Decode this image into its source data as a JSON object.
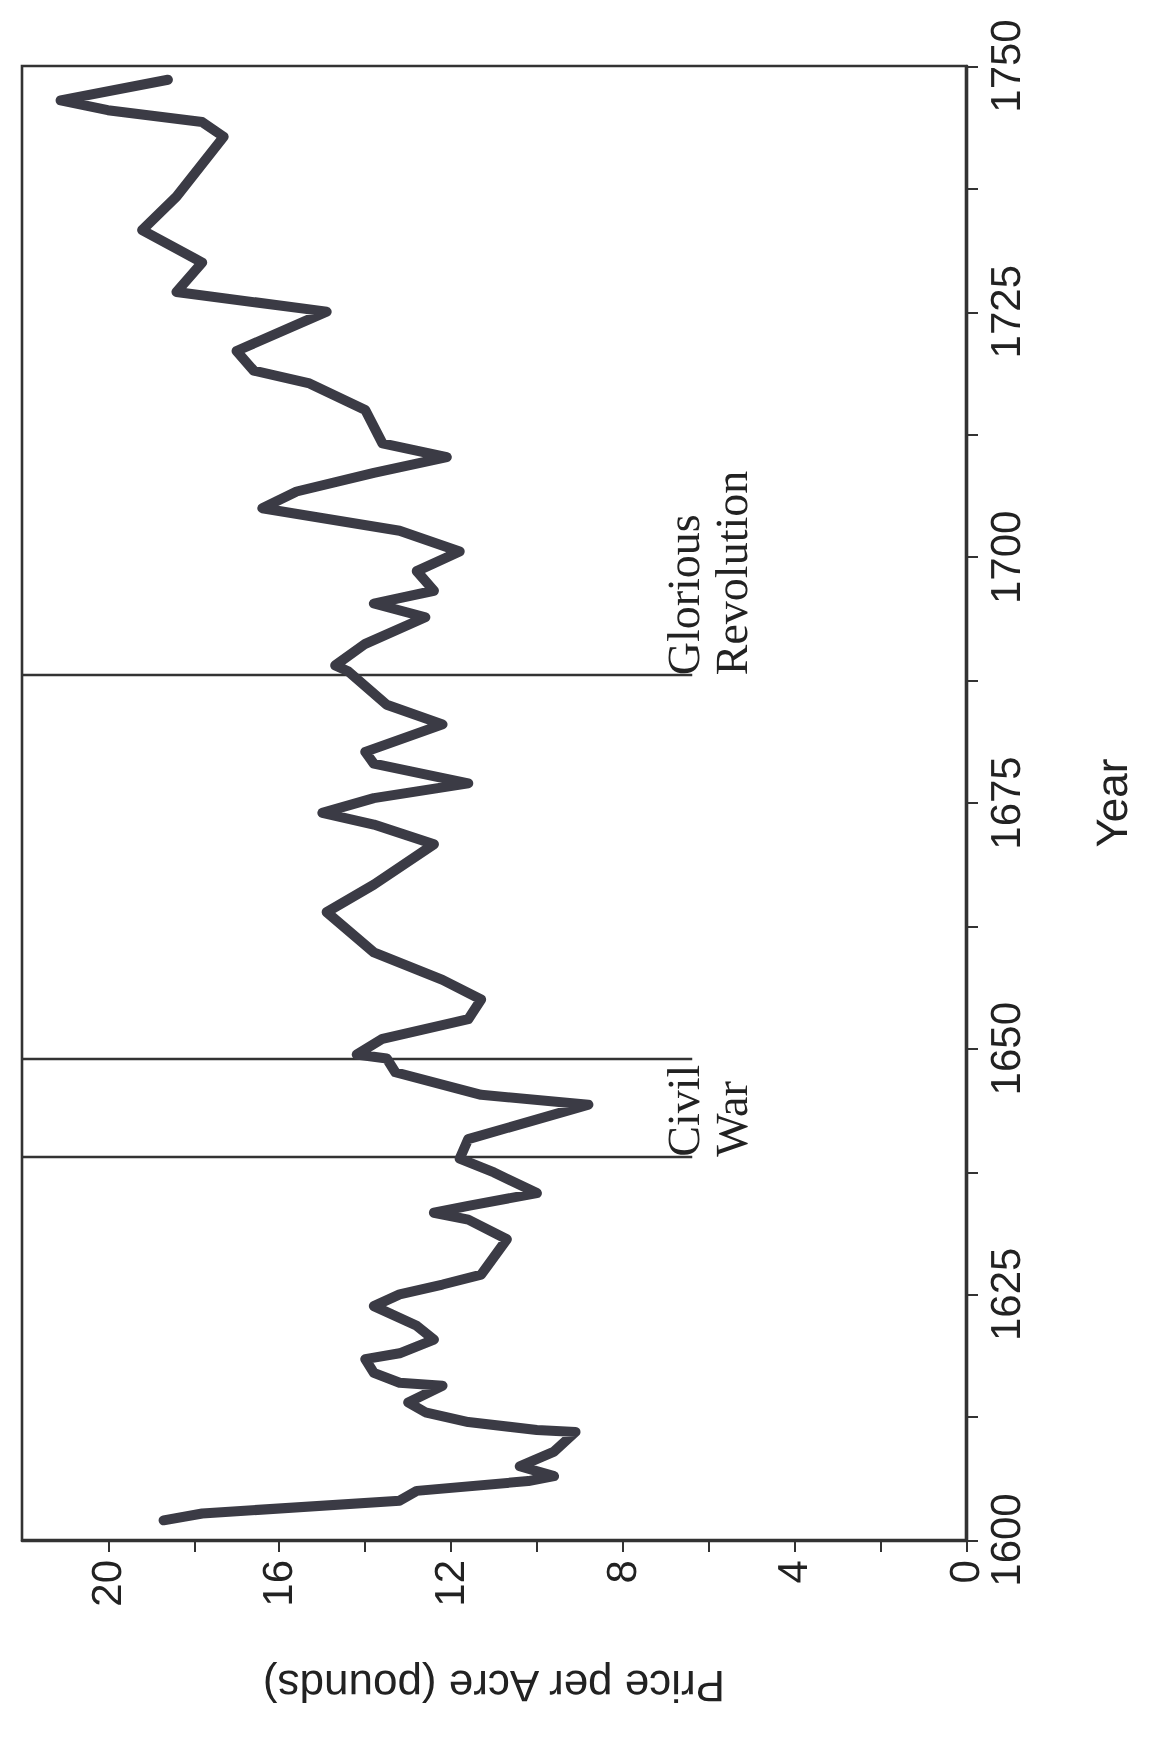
{
  "chart_data": {
    "type": "line",
    "xlabel": "Price per Acre (pounds)",
    "ylabel": "Year",
    "ylim": [
      1600,
      1750
    ],
    "yticks": [
      1600,
      {
        "value": 1612.5,
        "label": null
      },
      1625,
      {
        "value": 1637.5,
        "label": null
      },
      1650,
      {
        "value": 1662.5,
        "label": null
      },
      1675,
      {
        "value": 1687.5,
        "label": null
      },
      1700,
      {
        "value": 1712.5,
        "label": null
      },
      1725,
      {
        "value": 1737.5,
        "label": null
      },
      1750
    ],
    "xlim": [
      22,
      0
    ],
    "xticks": [
      0,
      {
        "value": 2,
        "label": null
      },
      4,
      {
        "value": 6,
        "label": null
      },
      8,
      {
        "value": 10,
        "label": null
      },
      12,
      {
        "value": 14,
        "label": null
      },
      16,
      {
        "value": 18,
        "label": null
      },
      20
    ],
    "grid": false,
    "marker": "none",
    "line_style": "solid",
    "series": [
      {
        "color": "#3b3b45",
        "x": [
          18.7,
          17.8,
          13.2,
          12.8,
          10.2,
          9.6,
          10.4,
          9.6,
          9.1,
          10.0,
          11.6,
          12.6,
          13.0,
          12.2,
          13.2,
          13.8,
          14.0,
          13.2,
          12.4,
          12.8,
          13.8,
          13.2,
          12.2,
          11.3,
          10.7,
          11.6,
          12.4,
          11.6,
          10.0,
          11.0,
          11.8,
          11.6,
          8.8,
          11.3,
          13.3,
          13.5,
          14.2,
          13.6,
          11.6,
          11.3,
          12.2,
          13.8,
          14.9,
          13.8,
          12.4,
          13.8,
          15.0,
          13.8,
          11.6,
          13.8,
          14.0,
          12.2,
          13.5,
          14.4,
          14.7,
          14.0,
          12.6,
          13.8,
          12.4,
          12.8,
          11.8,
          13.2,
          16.4,
          15.6,
          13.8,
          12.1,
          13.6,
          14.0,
          15.3,
          16.6,
          17.0,
          14.9,
          18.4,
          17.8,
          19.2,
          18.4,
          17.3,
          17.8,
          20.0,
          21.1,
          18.6
        ],
        "values": [
          1602,
          1602.7,
          1604,
          1605,
          1606,
          1606.5,
          1607.5,
          1609,
          1611,
          1611.2,
          1612,
          1613,
          1614,
          1615.7,
          1616,
          1617,
          1618.4,
          1619,
          1620.4,
          1621.8,
          1623.8,
          1625,
          1626,
          1627,
          1630.6,
          1632.6,
          1633.3,
          1634,
          1635.3,
          1637.4,
          1638.8,
          1640.8,
          1644.3,
          1645.3,
          1647.6,
          1649,
          1649.4,
          1651,
          1653,
          1655,
          1657,
          1659.8,
          1663.9,
          1666.7,
          1670.8,
          1672.8,
          1674,
          1675.5,
          1677,
          1679,
          1680.2,
          1683,
          1685,
          1688.4,
          1689,
          1691.2,
          1693.9,
          1695.3,
          1696.6,
          1698.6,
          1700.6,
          1702.7,
          1705,
          1706.7,
          1708.6,
          1710.2,
          1711.6,
          1715,
          1717.7,
          1719,
          1721,
          1725,
          1727,
          1730,
          1733.3,
          1736.7,
          1742.8,
          1744.3,
          1745.5,
          1746.5,
          1748.6
        ]
      }
    ],
    "ref_lines": [
      {
        "axis": "y",
        "value": 1639,
        "label": "Civil War",
        "color": "#333333"
      },
      {
        "axis": "y",
        "value": 1649,
        "color": "#333333"
      },
      {
        "axis": "y",
        "value": 1688,
        "label": "Glorious Revolution",
        "color": "#333333"
      }
    ]
  }
}
